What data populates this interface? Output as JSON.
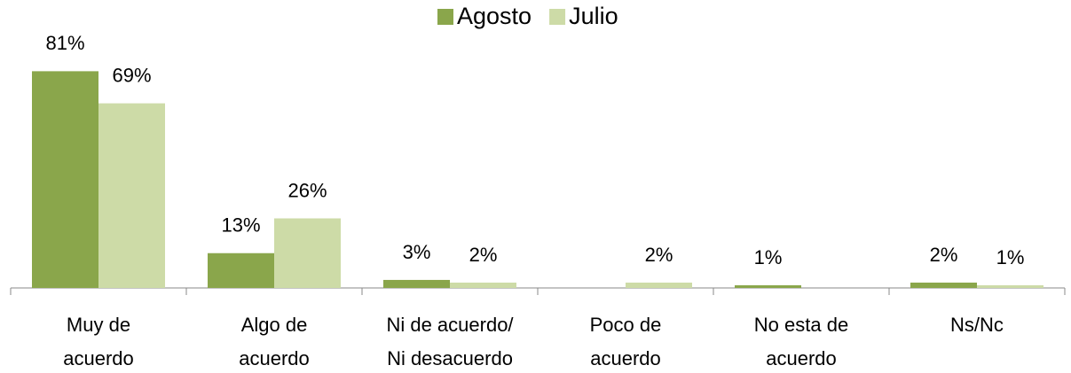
{
  "chart_data": {
    "type": "bar",
    "categories": [
      [
        "Muy de",
        "acuerdo"
      ],
      [
        "Algo de",
        "acuerdo"
      ],
      [
        "Ni de acuerdo/",
        "Ni desacuerdo"
      ],
      [
        "Poco de",
        "acuerdo"
      ],
      [
        "No esta de",
        "acuerdo"
      ],
      [
        "Ns/Nc"
      ]
    ],
    "series": [
      {
        "name": "Agosto",
        "color": "#8aa64b",
        "values": [
          81,
          13,
          3,
          null,
          1,
          2
        ],
        "value_labels": [
          "81%",
          "13%",
          "3%",
          null,
          "1%",
          "2%"
        ]
      },
      {
        "name": "Julio",
        "color": "#cddba7",
        "values": [
          69,
          26,
          2,
          2,
          null,
          1
        ],
        "value_labels": [
          "69%",
          "26%",
          "2%",
          "2%",
          null,
          "1%"
        ]
      }
    ],
    "legend": "top"
  }
}
